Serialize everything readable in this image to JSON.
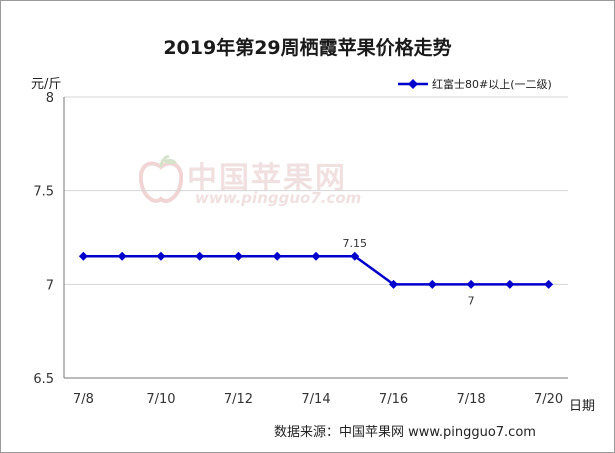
{
  "chart_data": {
    "type": "line",
    "title": "2019年第29周栖霞苹果价格走势",
    "ylabel": "元/斤",
    "xlabel": "日期",
    "categories": [
      "7/8",
      "7/9",
      "7/10",
      "7/11",
      "7/12",
      "7/13",
      "7/14",
      "7/15",
      "7/16",
      "7/17",
      "7/18",
      "7/19",
      "7/20"
    ],
    "x_tick_labels": [
      "7/8",
      "7/10",
      "7/12",
      "7/14",
      "7/16",
      "7/18",
      "7/20"
    ],
    "y_ticks": [
      "6.5",
      "7",
      "7.5",
      "8"
    ],
    "ylim": [
      6.5,
      8
    ],
    "grid": true,
    "legend_position": "top-right",
    "series": [
      {
        "name": "红富士80#以上(一二级)",
        "color": "#0000cc",
        "values": [
          7.15,
          7.15,
          7.15,
          7.15,
          7.15,
          7.15,
          7.15,
          7.15,
          7,
          7,
          7,
          7,
          7
        ]
      }
    ],
    "data_labels": [
      {
        "index": 7,
        "text": "7.15"
      },
      {
        "index": 10,
        "text": "7"
      }
    ]
  },
  "source_note": "数据来源：中国苹果网 www.pingguo7.com",
  "watermark": {
    "text": "中国苹果网",
    "url": "www.pingguo7.com"
  }
}
